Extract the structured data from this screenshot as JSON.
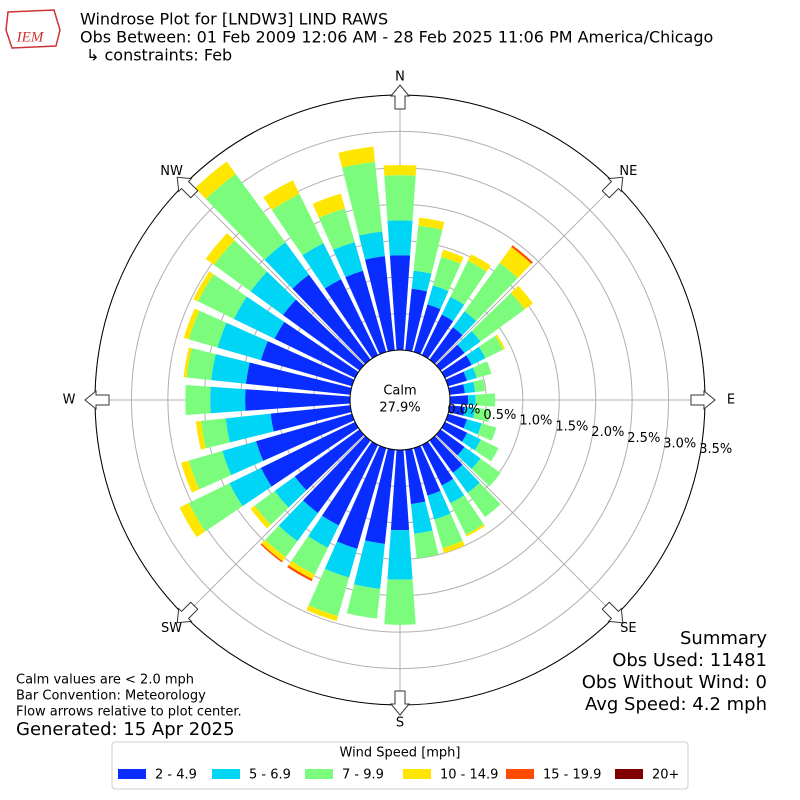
{
  "chart_data": {
    "type": "windrose",
    "title": "Windrose Plot for [LNDW3] LIND RAWS",
    "subtitle": "Obs Between: 01 Feb 2009 12:06 AM - 28 Feb 2025 11:06 PM America/Chicago",
    "constraints": "↳ constraints: Feb",
    "logo_text": "IEM",
    "calm_label": "Calm",
    "calm": {
      "value": 27.9,
      "label": "27.9%"
    },
    "compass": [
      "N",
      "NE",
      "E",
      "SE",
      "S",
      "SW",
      "W",
      "NW"
    ],
    "directions": [
      0,
      10,
      20,
      30,
      40,
      50,
      60,
      70,
      80,
      90,
      100,
      110,
      120,
      130,
      140,
      150,
      160,
      170,
      180,
      190,
      200,
      210,
      220,
      230,
      240,
      250,
      260,
      270,
      280,
      290,
      300,
      310,
      320,
      330,
      340,
      350
    ],
    "rlim": [
      0,
      3.5
    ],
    "rticks": [
      {
        "value": 0,
        "label": "0.0%"
      },
      {
        "value": 0.5,
        "label": "0.5%"
      },
      {
        "value": 1.0,
        "label": "1.0%"
      },
      {
        "value": 1.5,
        "label": "1.5%"
      },
      {
        "value": 2.0,
        "label": "2.0%"
      },
      {
        "value": 2.5,
        "label": "2.5%"
      },
      {
        "value": 3.0,
        "label": "3.0%"
      },
      {
        "value": 3.5,
        "label": "3.5%"
      }
    ],
    "grid": true,
    "legend_title": "Wind Speed [mph]",
    "series": [
      {
        "name": "2 - 4.9",
        "color": "#0a2dff",
        "values": [
          1.3,
          0.85,
          0.68,
          0.62,
          0.55,
          0.41,
          0.41,
          0.27,
          0.21,
          0.25,
          0.21,
          0.27,
          0.34,
          0.41,
          0.55,
          0.62,
          0.68,
          0.75,
          1.1,
          1.3,
          1.44,
          1.23,
          1.23,
          1.1,
          1.44,
          1.37,
          1.1,
          1.44,
          1.44,
          1.3,
          1.23,
          1.3,
          1.44,
          1.16,
          1.16,
          1.3
        ]
      },
      {
        "name": "5 - 6.9",
        "color": "#00d5f5",
        "values": [
          0.48,
          0.25,
          0.27,
          0.27,
          0.27,
          0.27,
          0.21,
          0.14,
          0.14,
          0.1,
          0.14,
          0.21,
          0.21,
          0.27,
          0.34,
          0.27,
          0.34,
          0.41,
          0.68,
          0.62,
          0.41,
          0.34,
          0.48,
          0.34,
          0.48,
          0.48,
          0.62,
          0.48,
          0.48,
          0.62,
          0.62,
          0.55,
          0.55,
          0.55,
          0.41,
          0.34
        ]
      },
      {
        "name": "7 - 9.9",
        "color": "#7cfc7c",
        "values": [
          0.62,
          0.62,
          0.41,
          0.55,
          0.82,
          0.75,
          0.27,
          0.21,
          0.14,
          0.27,
          0.21,
          0.21,
          0.27,
          0.34,
          0.41,
          0.48,
          0.41,
          0.34,
          0.62,
          0.41,
          0.55,
          0.41,
          0.27,
          0.34,
          0.62,
          0.48,
          0.34,
          0.34,
          0.34,
          0.41,
          0.55,
          0.62,
          1.16,
          0.75,
          0.48,
          0.96
        ]
      },
      {
        "name": "10 - 14.9",
        "color": "#ffe600",
        "values": [
          0.14,
          0.11,
          0.1,
          0.1,
          0.27,
          0.14,
          0.03,
          0,
          0,
          0,
          0,
          0,
          0,
          0,
          0,
          0.03,
          0.07,
          0,
          0,
          0,
          0.07,
          0.07,
          0.07,
          0.07,
          0.14,
          0.11,
          0.07,
          0,
          0.04,
          0.07,
          0.07,
          0.14,
          0.21,
          0.21,
          0.21,
          0.21
        ]
      },
      {
        "name": "15 - 19.9",
        "color": "#ff4b00",
        "values": [
          0,
          0,
          0,
          0,
          0.03,
          0,
          0,
          0,
          0,
          0,
          0,
          0,
          0,
          0,
          0,
          0,
          0,
          0,
          0,
          0,
          0,
          0.03,
          0.02,
          0,
          0,
          0,
          0,
          0,
          0,
          0,
          0,
          0,
          0,
          0,
          0,
          0
        ]
      },
      {
        "name": "20+",
        "color": "#800000",
        "values": [
          0,
          0,
          0,
          0,
          0,
          0,
          0,
          0,
          0,
          0,
          0,
          0,
          0,
          0,
          0,
          0,
          0,
          0,
          0,
          0,
          0,
          0,
          0,
          0,
          0,
          0,
          0,
          0,
          0,
          0,
          0,
          0,
          0,
          0,
          0,
          0
        ]
      }
    ],
    "notes": [
      "Calm values are < 2.0 mph",
      "Bar Convention: Meteorology",
      "Flow arrows relative to plot center."
    ],
    "generated": "Generated: 15 Apr 2025",
    "summary": {
      "title": "Summary",
      "lines": [
        "Obs Used: 11481",
        "Obs Without Wind: 0",
        "Avg Speed: 4.2 mph"
      ]
    }
  }
}
